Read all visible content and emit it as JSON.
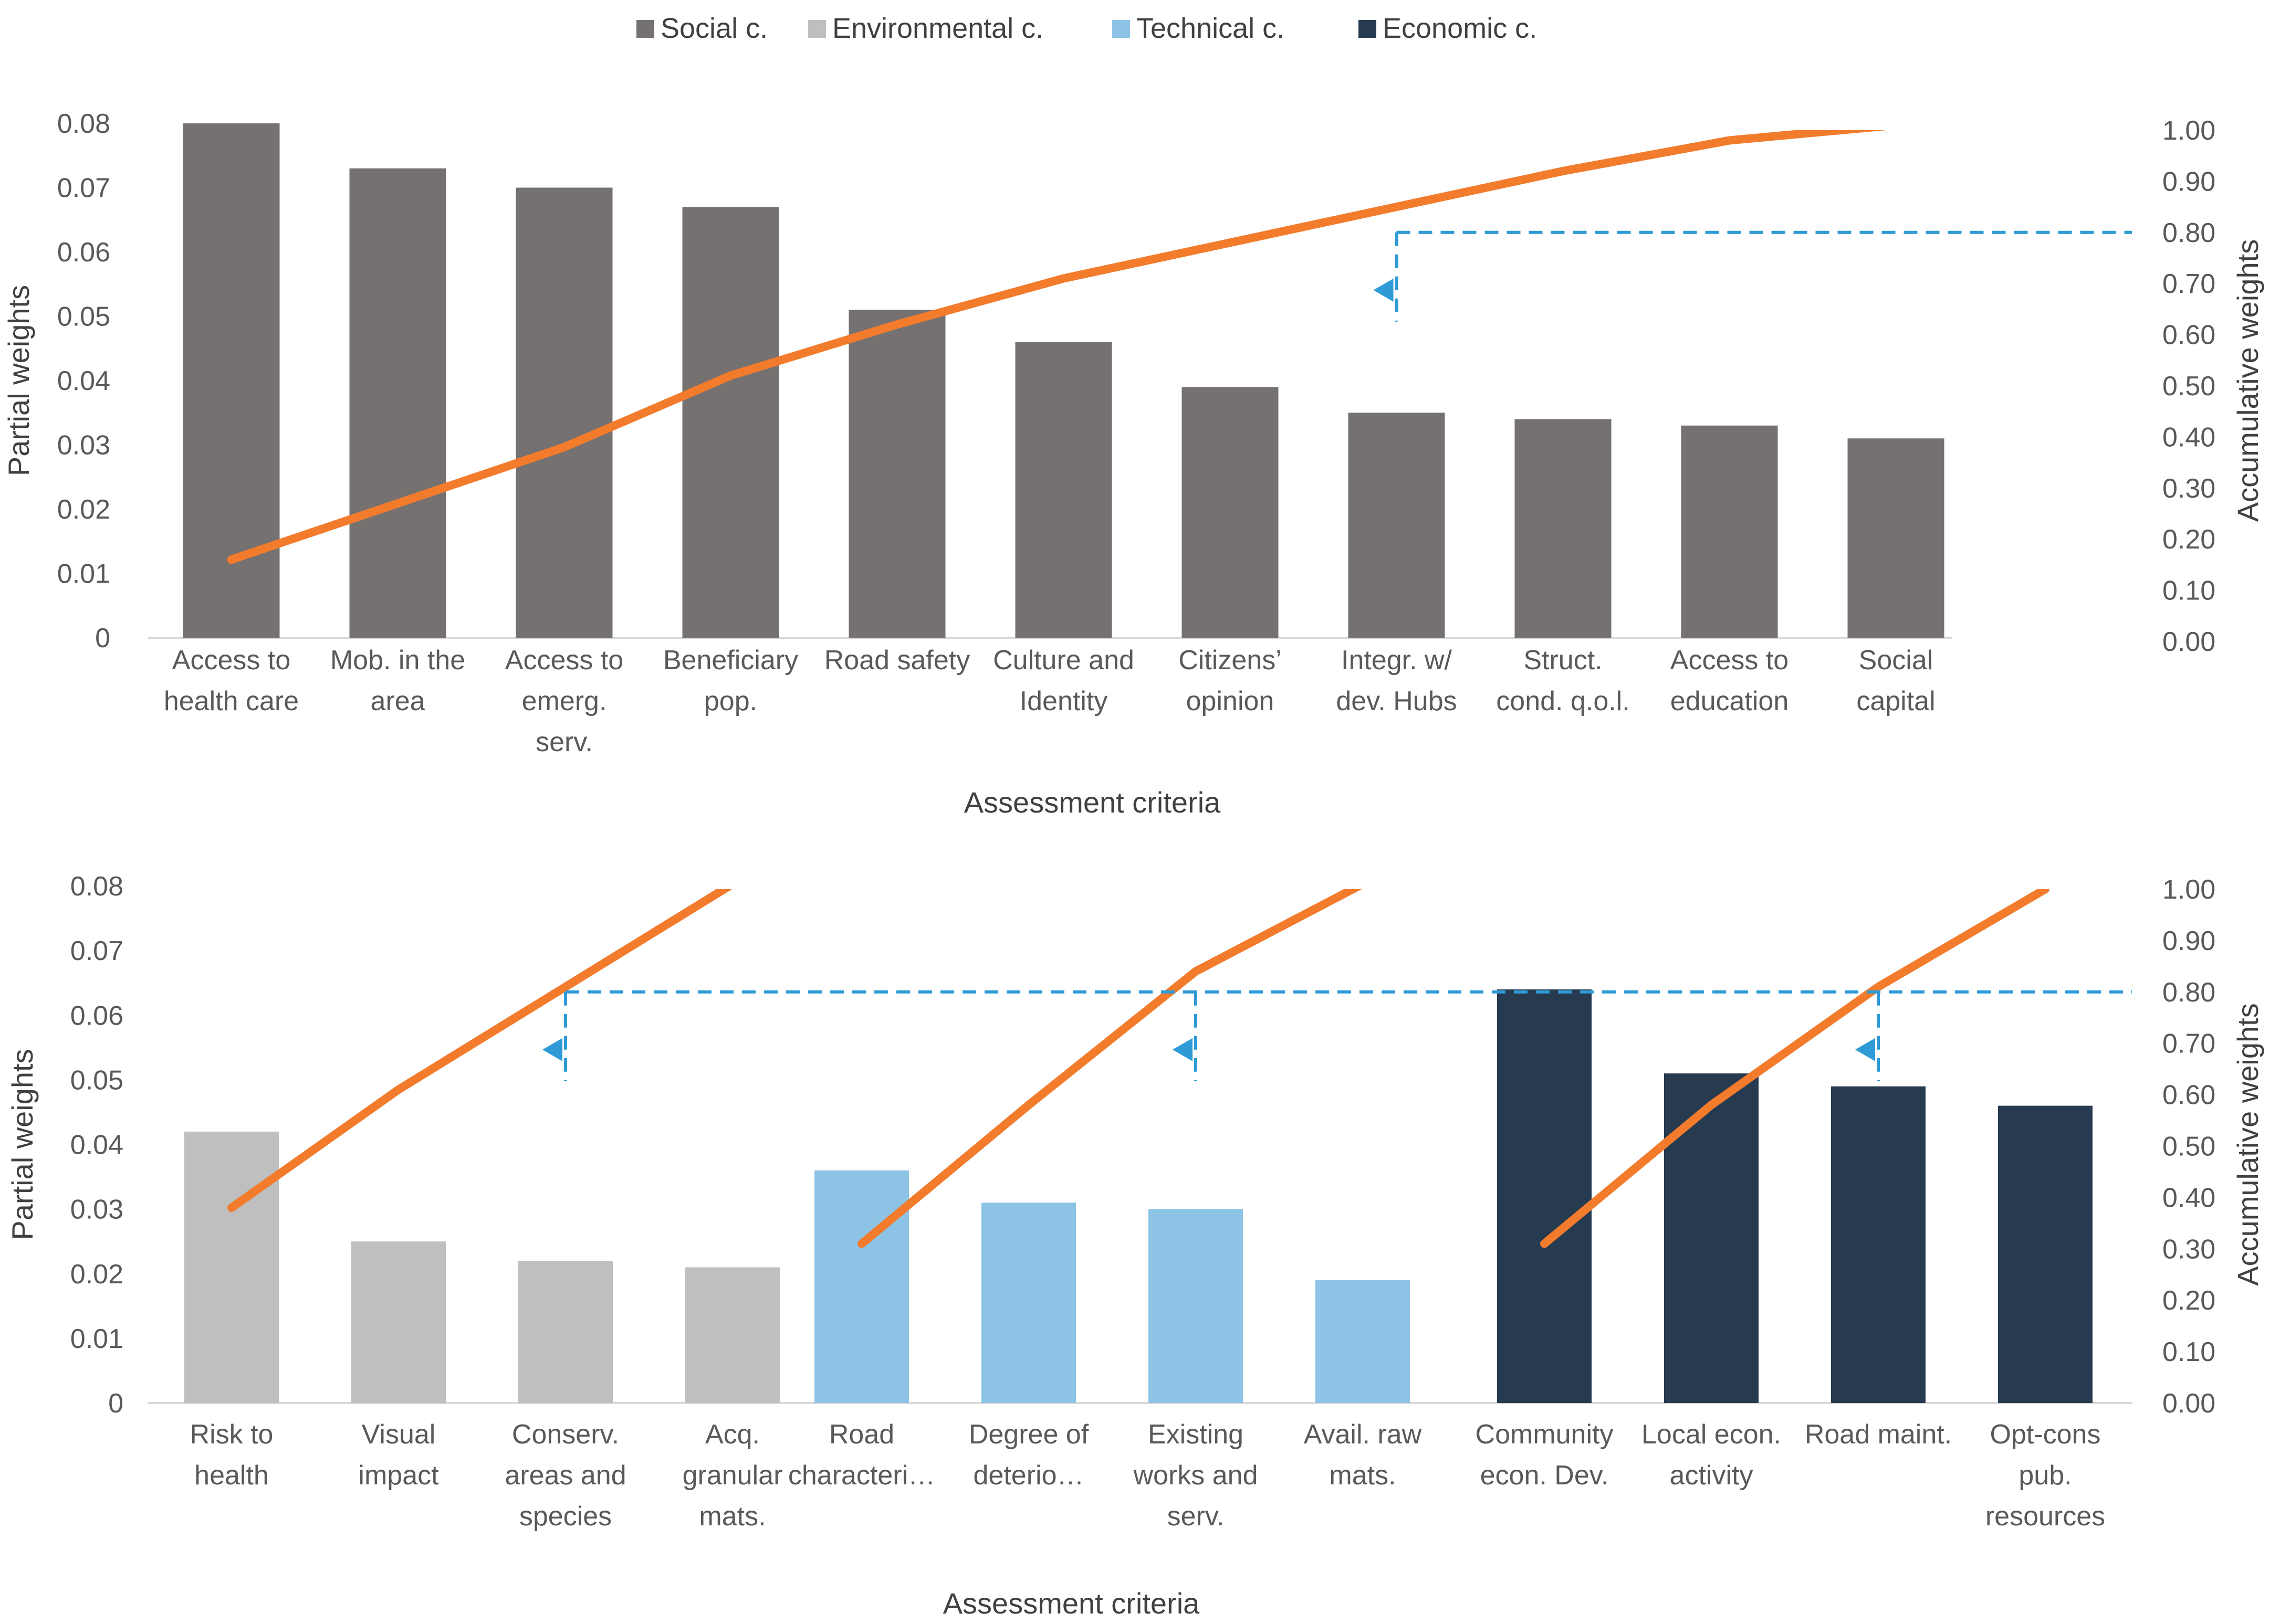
{
  "chart_data": [
    {
      "type": "bar",
      "legend": {
        "placement": "top",
        "entries": [
          {
            "name": "Social c.",
            "color": "#767171"
          },
          {
            "name": "Environmental c.",
            "color": "#bfbfbf"
          },
          {
            "name": "Technical c.",
            "color": "#8dc3e5"
          },
          {
            "name": "Economic c.",
            "color": "#263a50"
          }
        ]
      },
      "xlabel": "Assessment criteria",
      "ylabel": "Partial weights",
      "y2label": "Accumulative weights",
      "ylim": [
        0,
        0.08
      ],
      "y2lim": [
        0,
        1.0
      ],
      "yticks": [
        "0",
        "0.01",
        "0.02",
        "0.03",
        "0.04",
        "0.05",
        "0.06",
        "0.07",
        "0.08"
      ],
      "y2ticks": [
        "0.00",
        "0.10",
        "0.20",
        "0.30",
        "0.40",
        "0.50",
        "0.60",
        "0.70",
        "0.80",
        "0.90",
        "1.00"
      ],
      "threshold": 0.8,
      "line_color": "#f27b2c",
      "threshold_color": "#2e9bd6",
      "groups": [
        {
          "name": "Social c.",
          "color": "#767171",
          "categories": [
            [
              "Access to",
              "health care"
            ],
            [
              "Mob. in the",
              "area"
            ],
            [
              "Access to",
              "emerg.",
              "serv."
            ],
            [
              "Beneficiary",
              "pop."
            ],
            [
              "Road safety"
            ],
            [
              "Culture and",
              "Identity"
            ],
            [
              "Citizens’",
              "opinion"
            ],
            [
              "Integr. w/",
              "dev. Hubs"
            ],
            [
              "Struct.",
              "cond. q.o.l."
            ],
            [
              "Access to",
              "education"
            ],
            [
              "Social",
              "capital"
            ]
          ],
          "values": [
            0.08,
            0.073,
            0.07,
            0.067,
            0.051,
            0.046,
            0.039,
            0.035,
            0.034,
            0.033,
            0.031
          ],
          "cumulative": [
            0.16,
            0.27,
            0.38,
            0.52,
            0.62,
            0.71,
            0.78,
            0.85,
            0.92,
            0.98,
            1.01
          ],
          "cutoff_index": 7
        }
      ]
    },
    {
      "type": "bar",
      "xlabel": "Assessment criteria",
      "ylabel": "Partial weights",
      "y2label": "Accumulative weights",
      "ylim": [
        0,
        0.08
      ],
      "y2lim": [
        0,
        1.0
      ],
      "yticks": [
        "0",
        "0.01",
        "0.02",
        "0.03",
        "0.04",
        "0.05",
        "0.06",
        "0.07",
        "0.08"
      ],
      "y2ticks": [
        "0.00",
        "0.10",
        "0.20",
        "0.30",
        "0.40",
        "0.50",
        "0.60",
        "0.70",
        "0.80",
        "0.90",
        "1.00"
      ],
      "threshold": 0.8,
      "line_color": "#f27b2c",
      "threshold_color": "#2e9bd6",
      "groups": [
        {
          "name": "Environmental c.",
          "color": "#bfbfbf",
          "categories": [
            [
              "Risk to",
              "health"
            ],
            [
              "Visual",
              "impact"
            ],
            [
              "Conserv.",
              "areas and",
              "species"
            ],
            [
              "Acq.",
              "granular",
              "mats."
            ]
          ],
          "values": [
            0.042,
            0.025,
            0.022,
            0.021
          ],
          "cumulative": [
            0.38,
            0.61,
            0.81,
            1.01
          ],
          "cutoff_index": 2
        },
        {
          "name": "Technical c.",
          "color": "#8dc3e5",
          "categories": [
            [
              "Road",
              "characteri…"
            ],
            [
              "Degree of",
              "deterio…"
            ],
            [
              "Existing",
              "works and",
              "serv."
            ],
            [
              "Avail. raw",
              "mats."
            ]
          ],
          "values": [
            0.036,
            0.031,
            0.03,
            0.019
          ],
          "cumulative": [
            0.31,
            0.58,
            0.84,
            1.01
          ],
          "cutoff_index": 2
        },
        {
          "name": "Economic c.",
          "color": "#263a50",
          "categories": [
            [
              "Community",
              "econ. Dev."
            ],
            [
              "Local econ.",
              "activity"
            ],
            [
              "Road maint."
            ],
            [
              "Opt-cons",
              "pub.",
              "resources"
            ]
          ],
          "values": [
            0.064,
            0.051,
            0.049,
            0.046
          ],
          "cumulative": [
            0.31,
            0.58,
            0.81,
            1.0
          ],
          "cutoff_index": 2
        }
      ]
    }
  ]
}
